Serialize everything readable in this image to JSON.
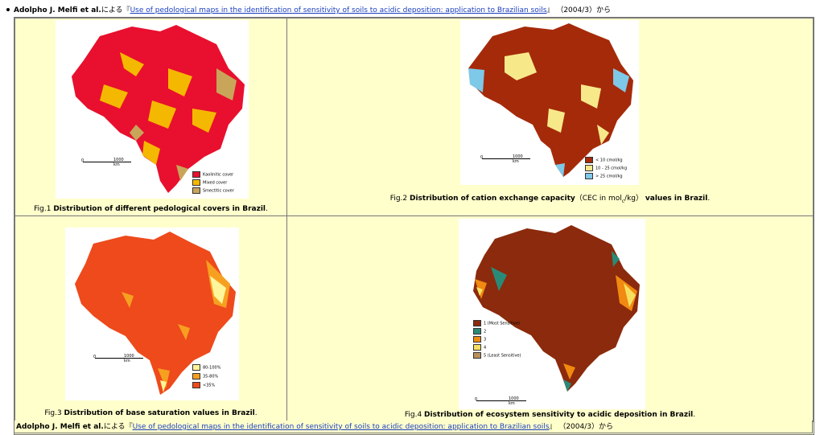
{
  "header": {
    "author": "Adolpho J. Melfi et al.",
    "ni_yoru": "による",
    "open_bracket": "『",
    "title_link": "Use of pedological maps in the identification of sensitivity of soils to acidic deposition: application to Brazilian soils",
    "close_bracket": "』",
    "date": "（2004/3）から"
  },
  "figures": [
    {
      "prefix": "Fig.1 ",
      "title": "Distribution of different pedological covers in Brazil",
      "suffix": ".",
      "scale_label": "1000 km",
      "scale_zero": "0",
      "legend": [
        {
          "label": "Kaolinitic cover",
          "color": "#e8102e"
        },
        {
          "label": "Mixed  cover",
          "color": "#f5b800"
        },
        {
          "label": "Smectitic cover",
          "color": "#c9a55a"
        }
      ]
    },
    {
      "prefix": "Fig.2 ",
      "title": "Distribution of cation exchange capacity",
      "middle": "（CEC in mol",
      "sub": "c",
      "after": "/kg）",
      "title2": "values in Brazil",
      "suffix": ".",
      "scale_label": "1000 km",
      "scale_zero": "0",
      "legend": [
        {
          "label": "< 10 cmol/kg",
          "color": "#a52a0a"
        },
        {
          "label": "10 - 25 cmol/kg",
          "color": "#f7e98a"
        },
        {
          "label": "> 25 cmol/kg",
          "color": "#7ec8e8"
        }
      ]
    },
    {
      "prefix": "Fig.3 ",
      "title": "Distribution of base saturation values in Brazil",
      "suffix": ".",
      "scale_label": "1000 km",
      "scale_zero": "0",
      "legend": [
        {
          "label": "80-100%",
          "color": "#fff59a"
        },
        {
          "label": "35-80%",
          "color": "#f7a020"
        },
        {
          "label": "<35%",
          "color": "#ee4a1c"
        }
      ]
    },
    {
      "prefix": "Fig.4 ",
      "title": "Distribution of ecosystem sensitivity to acidic deposition in Brazil",
      "suffix": ".",
      "scale_label": "1000 km",
      "scale_zero": "0",
      "legend": [
        {
          "label": "1 (Most Sensitive)",
          "color": "#8b2a0c"
        },
        {
          "label": "2",
          "color": "#2a8a78"
        },
        {
          "label": "3",
          "color": "#f08a10"
        },
        {
          "label": "4",
          "color": "#f7e060"
        },
        {
          "label": "5 (Least Sensitive)",
          "color": "#b8905a"
        }
      ]
    }
  ],
  "colors": {
    "panel_bg": "#ffffcc",
    "link": "#1a3fbf",
    "border": "#777777"
  }
}
